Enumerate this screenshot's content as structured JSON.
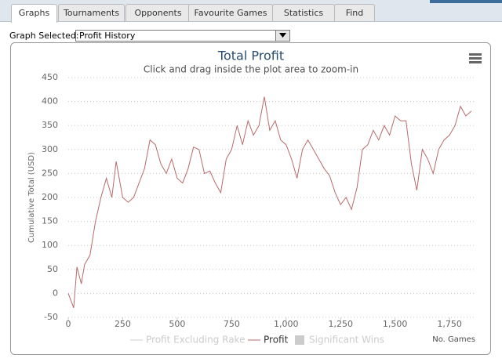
{
  "tabs": [
    "Graphs",
    "Tournaments",
    "Opponents",
    "Favourite Games",
    "Statistics",
    "Find"
  ],
  "active_tab": 0,
  "graph_selector": {
    "label": "Graph Selected:",
    "value": "Profit History"
  },
  "chart_data": {
    "type": "line",
    "title": "Total Profit",
    "subtitle": "Click and drag inside the plot area to zoom-in",
    "y_axis_label": "Cumulative Total (USD)",
    "x_axis_label": "No. Games",
    "xlim": [
      0,
      1872
    ],
    "ylim": [
      -50,
      450
    ],
    "xticks": [
      0,
      250,
      500,
      750,
      {
        "value": 1000,
        "label": "1,000"
      },
      {
        "value": 1250,
        "label": "1,250"
      },
      {
        "value": 1500,
        "label": "1,500"
      },
      {
        "value": 1750,
        "label": "1,750"
      }
    ],
    "yticks": [
      -50,
      0,
      50,
      100,
      150,
      200,
      250,
      300,
      350,
      400,
      450
    ],
    "grid": true,
    "x": [
      0,
      25,
      40,
      60,
      75,
      100,
      125,
      150,
      175,
      200,
      220,
      250,
      275,
      300,
      325,
      350,
      375,
      400,
      425,
      450,
      475,
      500,
      525,
      550,
      575,
      600,
      625,
      650,
      675,
      700,
      725,
      750,
      775,
      800,
      825,
      850,
      875,
      900,
      925,
      950,
      975,
      1000,
      1025,
      1050,
      1075,
      1100,
      1125,
      1150,
      1175,
      1200,
      1225,
      1250,
      1275,
      1300,
      1325,
      1350,
      1375,
      1400,
      1425,
      1450,
      1475,
      1500,
      1525,
      1550,
      1575,
      1600,
      1625,
      1650,
      1675,
      1700,
      1725,
      1750,
      1775,
      1800,
      1825,
      1850
    ],
    "series": [
      {
        "name": "Profit Excluding Rake",
        "color": "#cccccc",
        "visible": false
      },
      {
        "name": "Profit",
        "color": "#b86a6a",
        "visible": true,
        "values": [
          0,
          -30,
          55,
          20,
          60,
          80,
          150,
          200,
          240,
          200,
          275,
          200,
          190,
          200,
          230,
          260,
          320,
          310,
          270,
          250,
          280,
          240,
          230,
          260,
          305,
          300,
          250,
          255,
          230,
          210,
          280,
          300,
          350,
          310,
          360,
          330,
          350,
          410,
          340,
          360,
          320,
          310,
          280,
          240,
          300,
          320,
          300,
          280,
          260,
          245,
          210,
          185,
          200,
          175,
          220,
          300,
          310,
          340,
          320,
          350,
          330,
          370,
          360,
          360,
          270,
          215,
          300,
          280,
          250,
          300,
          320,
          330,
          350,
          390,
          370,
          380
        ]
      },
      {
        "name": "Significant Wins",
        "color": "#cccccc",
        "visible": false,
        "marker": "square"
      }
    ],
    "legend": "bottom"
  }
}
